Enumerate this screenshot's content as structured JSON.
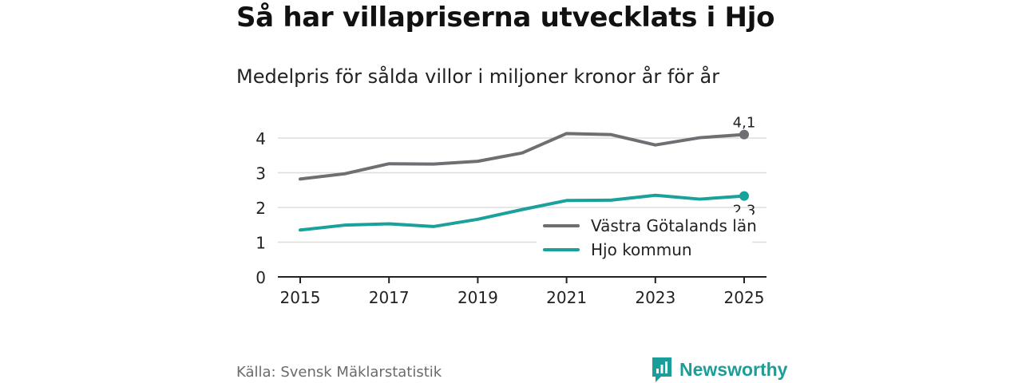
{
  "title": "Så har villapriserna utvecklats i Hjo",
  "subtitle": "Medelpris för sålda villor i miljoner kronor år för år",
  "source": "Källa: Svensk Mäklarstatistik",
  "brand": "Newsworthy",
  "colors": {
    "series1": "#6e6e73",
    "series2": "#1aa19b",
    "grid": "#dddddd",
    "axis": "#222222"
  },
  "chart_data": {
    "type": "line",
    "title": "Så har villapriserna utvecklats i Hjo",
    "subtitle": "Medelpris för sålda villor i miljoner kronor år för år",
    "x": [
      2015,
      2016,
      2017,
      2018,
      2019,
      2020,
      2021,
      2022,
      2023,
      2024,
      2025
    ],
    "xticks": [
      "2015",
      "2017",
      "2019",
      "2021",
      "2023",
      "2025"
    ],
    "yticks": [
      "0",
      "1",
      "2",
      "3",
      "4"
    ],
    "ylim": [
      0,
      4.4
    ],
    "xlabel": "",
    "ylabel": "",
    "grid": true,
    "legend_position": "bottom-right",
    "series": [
      {
        "name": "Västra Götalands län",
        "values": [
          2.82,
          2.97,
          3.26,
          3.25,
          3.33,
          3.57,
          4.13,
          4.1,
          3.8,
          4.01,
          4.1
        ],
        "end_label": "4,1"
      },
      {
        "name": "Hjo kommun",
        "values": [
          1.35,
          1.49,
          1.53,
          1.45,
          1.66,
          1.94,
          2.2,
          2.21,
          2.35,
          2.24,
          2.33
        ],
        "end_label": "2,3"
      }
    ]
  }
}
